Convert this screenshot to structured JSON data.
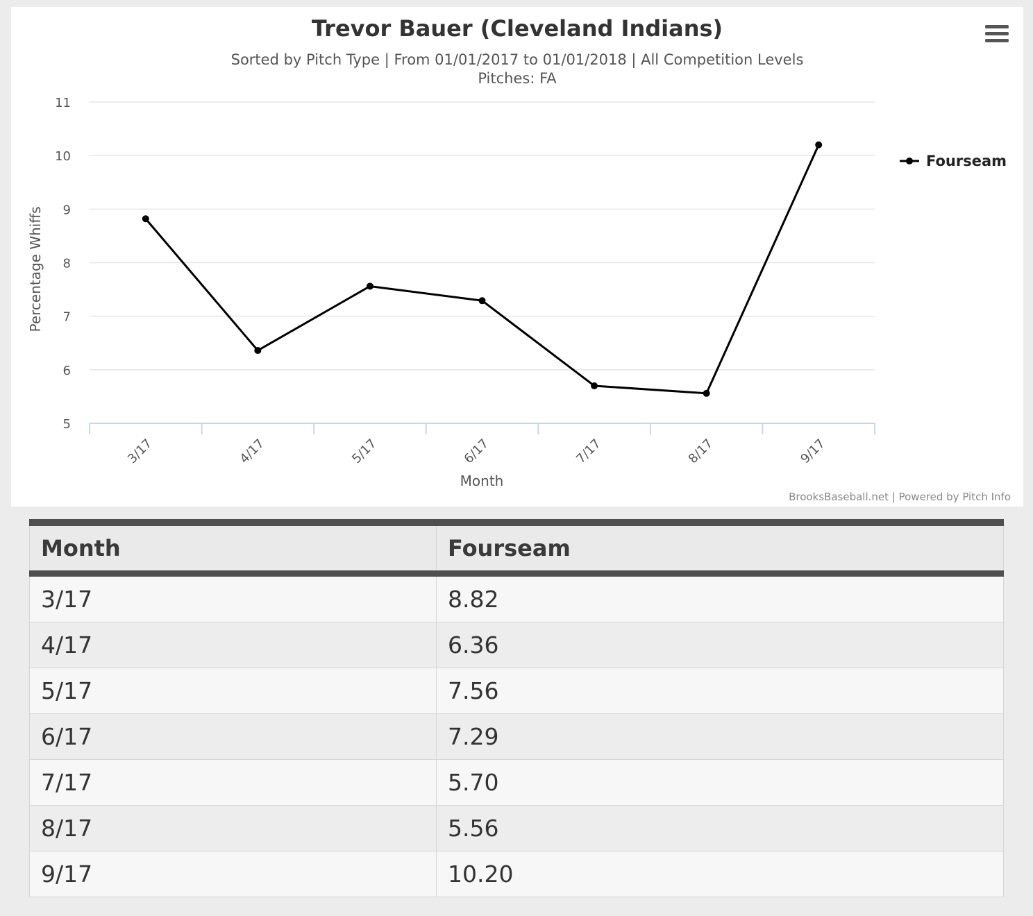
{
  "chart_data": {
    "type": "line",
    "title": "Trevor Bauer (Cleveland Indians)",
    "subtitle": "Sorted by Pitch Type | From 01/01/2017 to 01/01/2018 | All Competition Levels",
    "subtitle2": "Pitches: FA",
    "xlabel": "Month",
    "ylabel": "Percentage Whiffs",
    "categories": [
      "3/17",
      "4/17",
      "5/17",
      "6/17",
      "7/17",
      "8/17",
      "9/17"
    ],
    "series": [
      {
        "name": "Fourseam",
        "values": [
          8.82,
          6.36,
          7.56,
          7.29,
          5.7,
          5.56,
          10.2
        ]
      }
    ],
    "ylim": [
      5,
      11
    ],
    "yticks": [
      5,
      6,
      7,
      8,
      9,
      10,
      11
    ],
    "grid": true,
    "legend_position": "right",
    "line_color": "#000000",
    "credits": "BrooksBaseball.net | Powered by Pitch Info"
  },
  "menu": {
    "icon": "hamburger-menu-icon"
  },
  "table": {
    "headers": [
      "Month",
      "Fourseam"
    ],
    "rows": [
      [
        "3/17",
        "8.82"
      ],
      [
        "4/17",
        "6.36"
      ],
      [
        "5/17",
        "7.56"
      ],
      [
        "6/17",
        "7.29"
      ],
      [
        "7/17",
        "5.70"
      ],
      [
        "8/17",
        "5.56"
      ],
      [
        "9/17",
        "10.20"
      ]
    ]
  }
}
